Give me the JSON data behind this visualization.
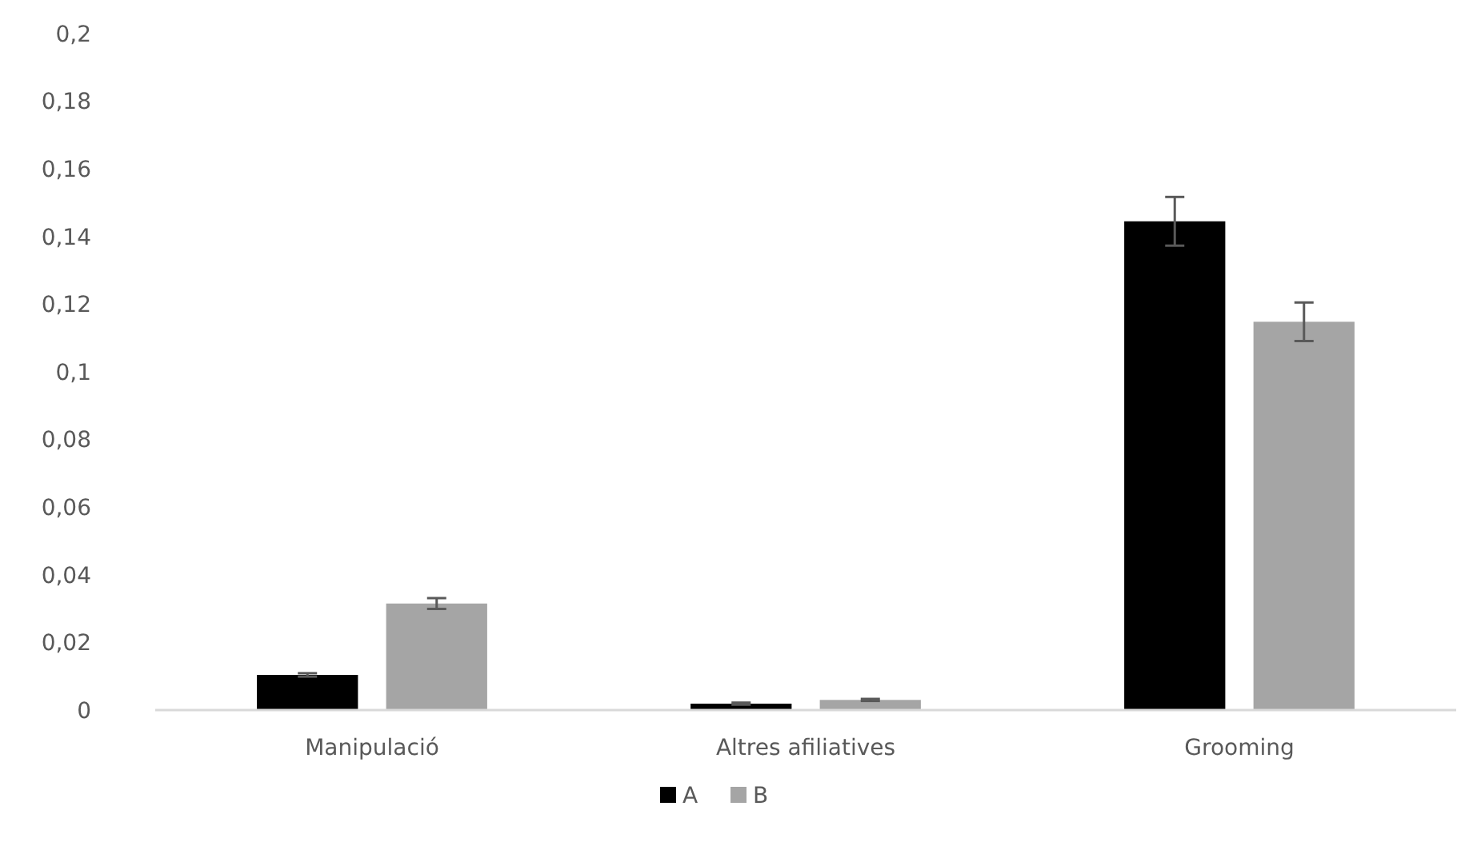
{
  "chart_data": {
    "type": "bar",
    "categories": [
      "Manipulació",
      "Altres afiliatives",
      "Grooming"
    ],
    "series": [
      {
        "name": "A",
        "color": "#000000",
        "values": [
          0.0104,
          0.0019,
          0.1445
        ],
        "errors": [
          0.0005,
          0.0003,
          0.0072
        ]
      },
      {
        "name": "B",
        "color": "#a5a5a5",
        "values": [
          0.0315,
          0.003,
          0.1148
        ],
        "errors": [
          0.0016,
          0.0003,
          0.0057
        ]
      }
    ],
    "ylim": [
      0,
      0.2
    ],
    "yticks": [
      {
        "value": 0,
        "label": "0"
      },
      {
        "value": 0.02,
        "label": "0,02"
      },
      {
        "value": 0.04,
        "label": "0,04"
      },
      {
        "value": 0.06,
        "label": "0,06"
      },
      {
        "value": 0.08,
        "label": "0,08"
      },
      {
        "value": 0.1,
        "label": "0,1"
      },
      {
        "value": 0.12,
        "label": "0,12"
      },
      {
        "value": 0.14,
        "label": "0,14"
      },
      {
        "value": 0.16,
        "label": "0,16"
      },
      {
        "value": 0.18,
        "label": "0,18"
      },
      {
        "value": 0.2,
        "label": "0,2"
      }
    ],
    "grid": false,
    "legend": "bottom"
  }
}
